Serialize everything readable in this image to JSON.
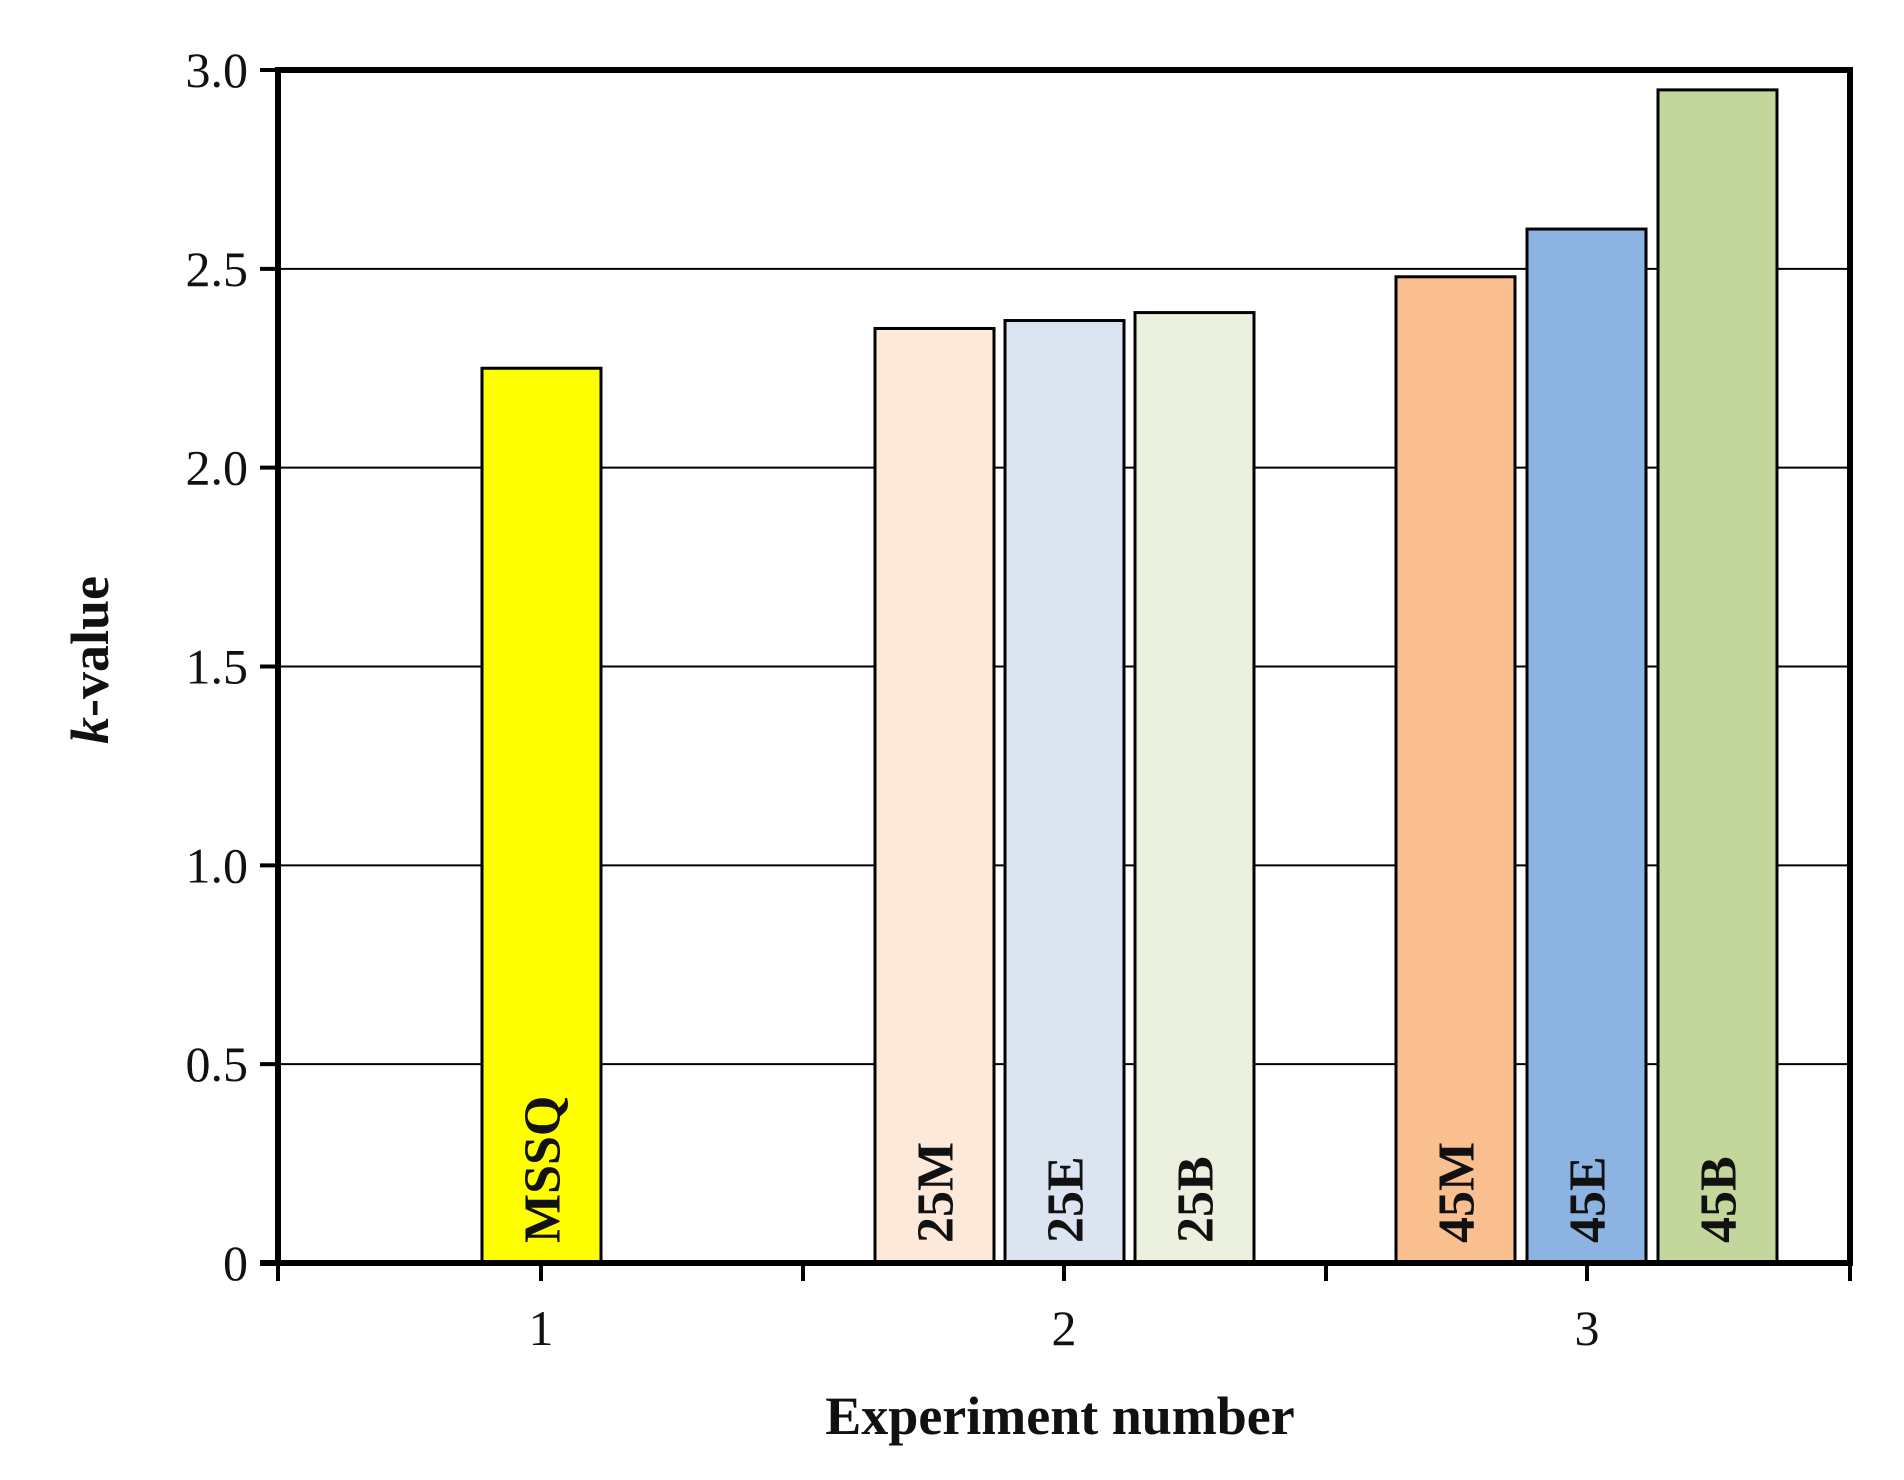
{
  "chart_data": {
    "type": "bar",
    "xlabel": "Experiment number",
    "ylabel_italic_part": "k",
    "ylabel_rest": "-value",
    "ylim": [
      0,
      3.0
    ],
    "yticks": [
      "0",
      "0.5",
      "1.0",
      "1.5",
      "2.0",
      "2.5",
      "3.0"
    ],
    "ytick_values": [
      0,
      0.5,
      1.0,
      1.5,
      2.0,
      2.5,
      3.0
    ],
    "categories": [
      "1",
      "2",
      "3"
    ],
    "grid": true,
    "bars": [
      {
        "group": "1",
        "label": "MSSQ",
        "value": 2.25,
        "color": "#FFFF00"
      },
      {
        "group": "2",
        "label": "25M",
        "value": 2.35,
        "color": "#FDE9D9"
      },
      {
        "group": "2",
        "label": "25E",
        "value": 2.37,
        "color": "#DBE5F1"
      },
      {
        "group": "2",
        "label": "25B",
        "value": 2.39,
        "color": "#EBF1DE"
      },
      {
        "group": "3",
        "label": "45M",
        "value": 2.48,
        "color": "#FABF8F"
      },
      {
        "group": "3",
        "label": "45E",
        "value": 2.6,
        "color": "#8DB3E2"
      },
      {
        "group": "3",
        "label": "45B",
        "value": 2.95,
        "color": "#C3D69B"
      }
    ]
  }
}
